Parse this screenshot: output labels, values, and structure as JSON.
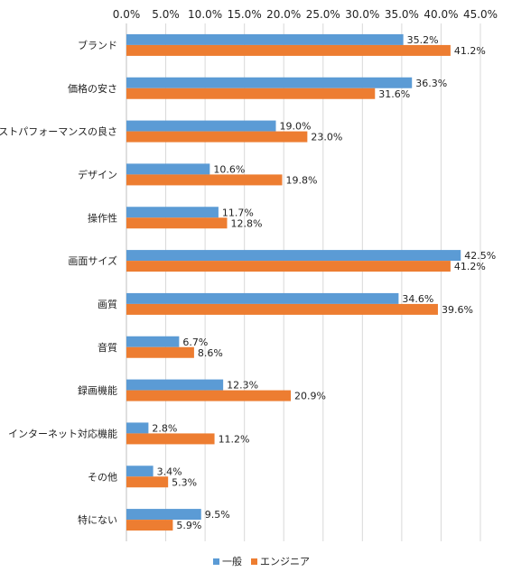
{
  "chart_data": {
    "type": "bar",
    "orientation": "horizontal",
    "categories": [
      "ブランド",
      "価格の安さ",
      "コストパフォーマンスの良さ",
      "デザイン",
      "操作性",
      "画面サイズ",
      "画質",
      "音質",
      "録画機能",
      "インターネット対応機能",
      "その他",
      "特にない"
    ],
    "series": [
      {
        "name": "一般",
        "color": "#5b9bd5",
        "values": [
          35.2,
          36.3,
          19.0,
          10.6,
          11.7,
          42.5,
          34.6,
          6.7,
          12.3,
          2.8,
          3.4,
          9.5
        ],
        "labels": [
          "35.2%",
          "36.3%",
          "19.0%",
          "10.6%",
          "11.7%",
          "42.5%",
          "34.6%",
          "6.7%",
          "12.3%",
          "2.8%",
          "3.4%",
          "9.5%"
        ]
      },
      {
        "name": "エンジニア",
        "color": "#ed7d31",
        "values": [
          41.2,
          31.6,
          23.0,
          19.8,
          12.8,
          41.2,
          39.6,
          8.6,
          20.9,
          11.2,
          5.3,
          5.9
        ],
        "labels": [
          "41.2%",
          "31.6%",
          "23.0%",
          "19.8%",
          "12.8%",
          "41.2%",
          "39.6%",
          "8.6%",
          "20.9%",
          "11.2%",
          "5.3%",
          "5.9%"
        ]
      }
    ],
    "xlim": [
      0,
      45
    ],
    "xticks": [
      0,
      5,
      10,
      15,
      20,
      25,
      30,
      35,
      40,
      45
    ],
    "xtick_labels": [
      "0.0%",
      "5.0%",
      "10.0%",
      "15.0%",
      "20.0%",
      "25.0%",
      "30.0%",
      "35.0%",
      "40.0%",
      "45.0%"
    ],
    "xaxis_position": "top",
    "grid": true,
    "legend_position": "bottom"
  }
}
